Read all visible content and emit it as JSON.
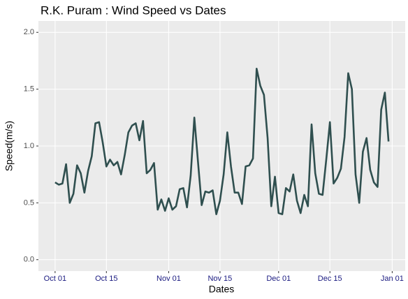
{
  "chart_data": {
    "type": "line",
    "title": "R.K. Puram : Wind Speed vs Dates",
    "x_label": "Dates",
    "y_label": "Speed(m/s)",
    "x": [
      "Oct 01",
      "Oct 02",
      "Oct 03",
      "Oct 04",
      "Oct 05",
      "Oct 06",
      "Oct 07",
      "Oct 08",
      "Oct 09",
      "Oct 10",
      "Oct 11",
      "Oct 12",
      "Oct 13",
      "Oct 14",
      "Oct 15",
      "Oct 16",
      "Oct 17",
      "Oct 18",
      "Oct 19",
      "Oct 20",
      "Oct 21",
      "Oct 22",
      "Oct 23",
      "Oct 24",
      "Oct 25",
      "Oct 26",
      "Oct 27",
      "Oct 28",
      "Oct 29",
      "Oct 30",
      "Oct 31",
      "Nov 01",
      "Nov 02",
      "Nov 03",
      "Nov 04",
      "Nov 05",
      "Nov 06",
      "Nov 07",
      "Nov 08",
      "Nov 09",
      "Nov 10",
      "Nov 11",
      "Nov 12",
      "Nov 13",
      "Nov 14",
      "Nov 15",
      "Nov 16",
      "Nov 17",
      "Nov 18",
      "Nov 19",
      "Nov 20",
      "Nov 21",
      "Nov 22",
      "Nov 23",
      "Nov 24",
      "Nov 25",
      "Nov 26",
      "Nov 27",
      "Nov 28",
      "Nov 29",
      "Nov 30",
      "Dec 01",
      "Dec 02",
      "Dec 03",
      "Dec 04",
      "Dec 05",
      "Dec 06",
      "Dec 07",
      "Dec 08",
      "Dec 09",
      "Dec 10",
      "Dec 11",
      "Dec 12",
      "Dec 13",
      "Dec 14",
      "Dec 15",
      "Dec 16",
      "Dec 17",
      "Dec 18",
      "Dec 19",
      "Dec 20",
      "Dec 21",
      "Dec 22",
      "Dec 23",
      "Dec 24",
      "Dec 25",
      "Dec 26",
      "Dec 27",
      "Dec 28",
      "Dec 29",
      "Dec 30",
      "Dec 31"
    ],
    "series": [
      {
        "name": "Speed",
        "color": "#2f4f4f",
        "values": [
          0.68,
          0.66,
          0.67,
          0.84,
          0.5,
          0.58,
          0.83,
          0.76,
          0.59,
          0.78,
          0.91,
          1.2,
          1.21,
          1.03,
          0.82,
          0.88,
          0.83,
          0.86,
          0.75,
          0.92,
          1.12,
          1.18,
          1.2,
          1.05,
          1.22,
          0.76,
          0.79,
          0.85,
          0.44,
          0.53,
          0.43,
          0.54,
          0.44,
          0.47,
          0.62,
          0.63,
          0.46,
          0.74,
          1.25,
          0.86,
          0.48,
          0.6,
          0.59,
          0.61,
          0.4,
          0.52,
          0.75,
          1.12,
          0.82,
          0.59,
          0.59,
          0.49,
          0.82,
          0.83,
          0.89,
          1.68,
          1.53,
          1.45,
          1.07,
          0.47,
          0.73,
          0.41,
          0.4,
          0.63,
          0.6,
          0.75,
          0.52,
          0.41,
          0.57,
          0.47,
          1.19,
          0.76,
          0.58,
          0.57,
          0.88,
          1.21,
          0.67,
          0.72,
          0.8,
          1.08,
          1.64,
          1.5,
          0.75,
          0.5,
          0.95,
          1.07,
          0.79,
          0.68,
          0.64,
          1.32,
          1.47,
          1.04
        ]
      }
    ],
    "xticks": [
      "Oct 01",
      "Oct 15",
      "Nov 01",
      "Nov 15",
      "Dec 01",
      "Dec 15",
      "Jan 01"
    ],
    "ylim": [
      -0.1,
      2.1
    ],
    "yticks": [
      {
        "value": 0,
        "label": "0.0"
      },
      {
        "value": 0.5,
        "label": "0.5"
      },
      {
        "value": 1,
        "label": "1.0"
      },
      {
        "value": 1.5,
        "label": "1.5"
      },
      {
        "value": 2,
        "label": "2.0"
      }
    ],
    "grid": true
  }
}
